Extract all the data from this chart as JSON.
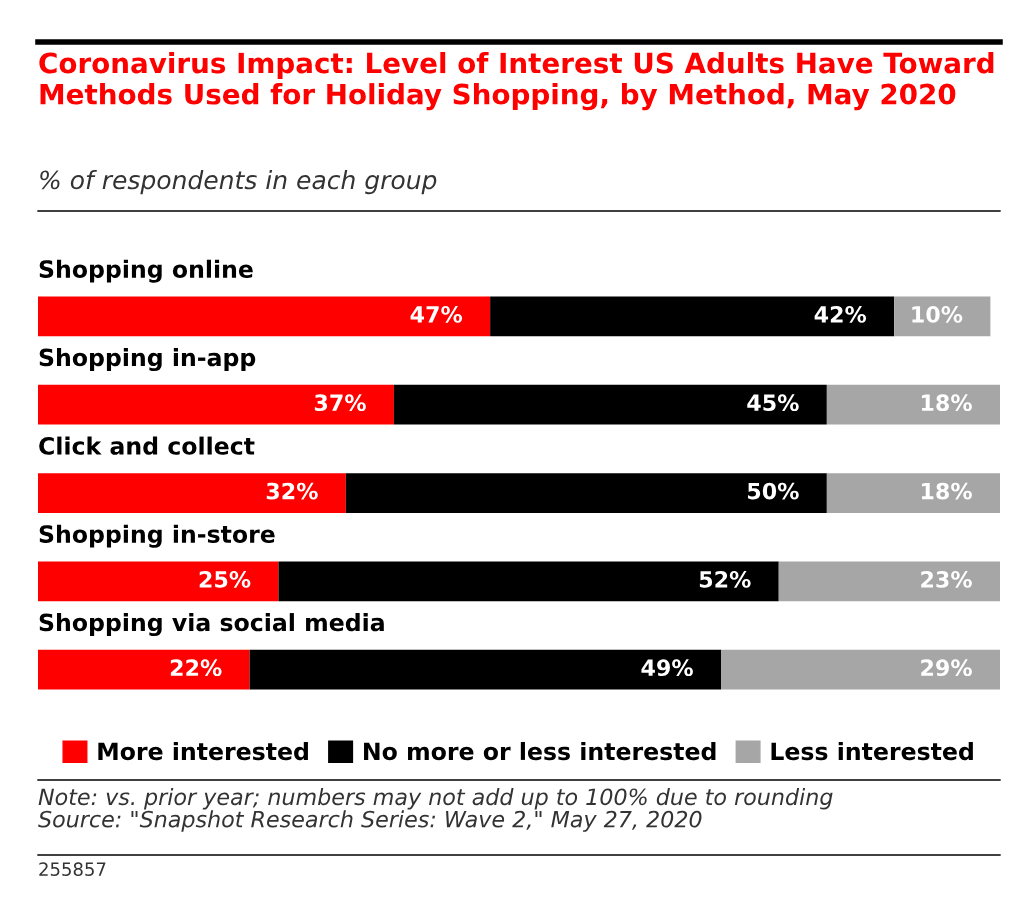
{
  "chart_data": {
    "type": "bar",
    "orientation": "horizontal",
    "stacked": true,
    "title": "Coronavirus Impact: Level of Interest US Adults Have Toward Methods Used for Holiday Shopping, by Method, May 2020",
    "subtitle": "% of respondents in each group",
    "categories": [
      "Shopping online",
      "Shopping in-app",
      "Click and collect",
      "Shopping in-store",
      "Shopping via social media"
    ],
    "series": [
      {
        "name": "More interested",
        "color": "#ff0000",
        "values": [
          47,
          37,
          32,
          25,
          22
        ],
        "value_labels": [
          "47%",
          "37%",
          "32%",
          "25%",
          "22%"
        ]
      },
      {
        "name": "No more or less interested",
        "color": "#000000",
        "values": [
          42,
          45,
          50,
          52,
          49
        ],
        "value_labels": [
          "42%",
          "45%",
          "50%",
          "52%",
          "49%"
        ]
      },
      {
        "name": "Less interested",
        "color": "#a6a6a6",
        "values": [
          10,
          18,
          18,
          23,
          29
        ],
        "value_labels": [
          "10%",
          "18%",
          "18%",
          "23%",
          "29%"
        ]
      }
    ],
    "legend": "bottom",
    "annotations": [
      "Note: vs. prior year; numbers may not add up to 100% due to rounding\nSource: \"Snapshot Research Series: Wave 2,\" May 27, 2020",
      "255857"
    ]
  }
}
